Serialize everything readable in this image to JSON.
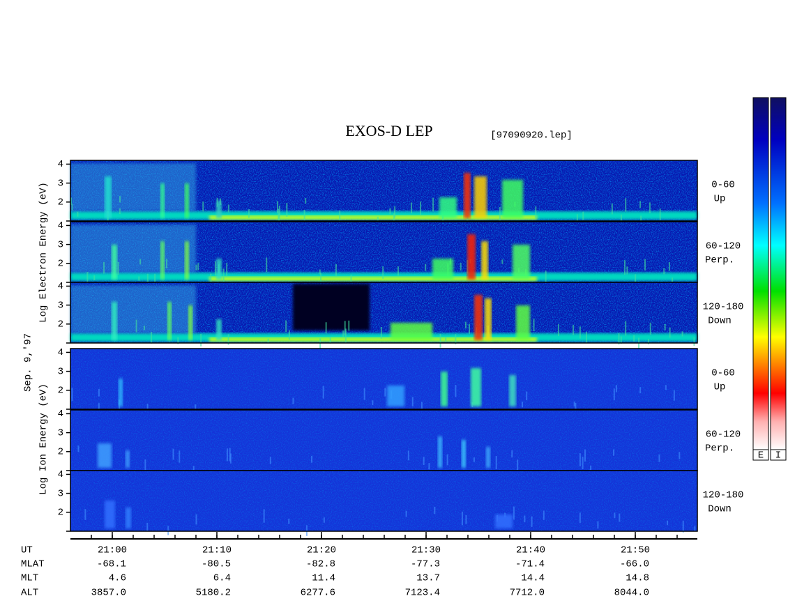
{
  "chart_data": {
    "type": "spectrogram",
    "title": "EXOS-D LEP",
    "file_label": "[97090920.lep]",
    "date_label": "Sep. 9,'97",
    "groups": [
      {
        "label": "Log Electron Energy (eV)",
        "color_bar_label": "E"
      },
      {
        "label": "Log Ion Energy (eV)",
        "color_bar_label": "I"
      }
    ],
    "panels": [
      {
        "group": 0,
        "pitch_angle": "0-60",
        "direction": "Up"
      },
      {
        "group": 0,
        "pitch_angle": "60-120",
        "direction": "Perp."
      },
      {
        "group": 0,
        "pitch_angle": "120-180",
        "direction": "Down"
      },
      {
        "group": 1,
        "pitch_angle": "0-60",
        "direction": "Up"
      },
      {
        "group": 1,
        "pitch_angle": "60-120",
        "direction": "Perp."
      },
      {
        "group": 1,
        "pitch_angle": "120-180",
        "direction": "Down"
      }
    ],
    "ylim": [
      1,
      4.2
    ],
    "yticks": [
      {
        "value": 1,
        "label": ""
      },
      2,
      3,
      4
    ],
    "orbit_table": {
      "row_labels": [
        "UT",
        "MLAT",
        "MLT",
        "ALT"
      ],
      "columns": [
        [
          "21:00",
          "-68.1",
          "4.6",
          "3857.0"
        ],
        [
          "21:10",
          "-80.5",
          "6.4",
          "5180.2"
        ],
        [
          "21:20",
          "-82.8",
          "11.4",
          "6277.6"
        ],
        [
          "21:30",
          "-77.3",
          "13.7",
          "7123.4"
        ],
        [
          "21:40",
          "-71.4",
          "14.4",
          "7712.0"
        ],
        [
          "21:50",
          "-66.0",
          "14.8",
          "8044.0"
        ]
      ]
    }
  }
}
